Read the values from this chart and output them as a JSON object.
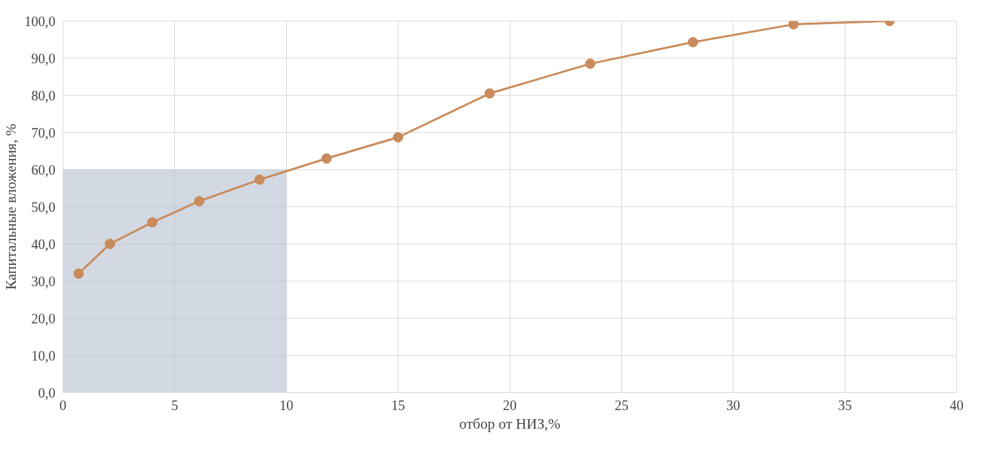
{
  "chart_data": {
    "type": "line",
    "xlabel": "отбор от НИЗ,%",
    "ylabel": "Капитальные вложения, %",
    "x": [
      0.7,
      2.1,
      4.0,
      6.1,
      8.8,
      11.8,
      15.0,
      19.1,
      23.6,
      28.2,
      32.7,
      37.0
    ],
    "series": [
      {
        "marker": "circle",
        "color": "#c98b5b",
        "values": [
          32.0,
          40.0,
          45.8,
          51.5,
          57.3,
          63.0,
          68.7,
          80.5,
          88.5,
          94.3,
          99.1,
          100.0
        ]
      },
      {
        "type": "area",
        "marker": "none",
        "x": [
          0,
          10
        ],
        "color": "#adb9ca",
        "values": [
          60,
          60
        ]
      }
    ],
    "xlim": [
      0,
      40
    ],
    "xticks": [
      0,
      5,
      10,
      15,
      20,
      25,
      30,
      35,
      40
    ],
    "ylim": [
      0,
      100
    ],
    "yticks": [
      {
        "value": 0,
        "label": "0,0"
      },
      {
        "value": 10,
        "label": "10,0"
      },
      {
        "value": 20,
        "label": "20,0"
      },
      {
        "value": 30,
        "label": "30,0"
      },
      {
        "value": 40,
        "label": "40,0"
      },
      {
        "value": 50,
        "label": "50,0"
      },
      {
        "value": 60,
        "label": "60,0"
      },
      {
        "value": 70,
        "label": "70,0"
      },
      {
        "value": 80,
        "label": "80,0"
      },
      {
        "value": 90,
        "label": "90,0"
      },
      {
        "value": 100,
        "label": "100,0"
      }
    ],
    "grid": true,
    "line_style": "solid"
  }
}
